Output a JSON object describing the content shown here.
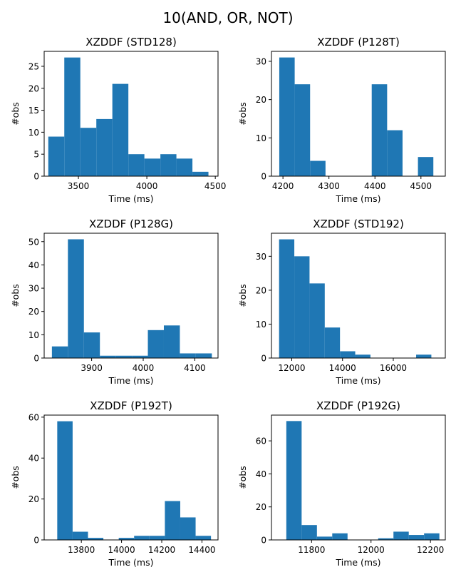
{
  "figure": {
    "title": "10(AND, OR, NOT)"
  },
  "colors": {
    "bar": "#1f77b4",
    "axis": "#000000"
  },
  "chart_data": [
    {
      "type": "bar",
      "title": "XZDDF (STD128)",
      "xlabel": "Time (ms)",
      "ylabel": "#obs",
      "xlim": [
        3250,
        4520
      ],
      "ylim": [
        0,
        28.4
      ],
      "xticks": [
        3500,
        4000,
        4500
      ],
      "yticks": [
        0,
        5,
        10,
        15,
        20,
        25
      ],
      "bin_edges": [
        3280,
        3397,
        3514,
        3631,
        3748,
        3865,
        3982,
        4099,
        4216,
        4333,
        4450
      ],
      "values": [
        9,
        27,
        11,
        13,
        21,
        5,
        4,
        5,
        4,
        1
      ]
    },
    {
      "type": "bar",
      "title": "XZDDF (P128T)",
      "xlabel": "Time (ms)",
      "ylabel": "#obs",
      "xlim": [
        4175,
        4553
      ],
      "ylim": [
        0,
        32.6
      ],
      "xticks": [
        4200,
        4300,
        4400,
        4500
      ],
      "yticks": [
        0,
        10,
        20,
        30
      ],
      "bin_edges": [
        4192,
        4225.5,
        4259,
        4292.5,
        4326,
        4359.5,
        4393,
        4426.5,
        4460,
        4493.5,
        4527
      ],
      "values": [
        31,
        24,
        4,
        0,
        0,
        0,
        24,
        12,
        0,
        5
      ]
    },
    {
      "type": "bar",
      "title": "XZDDF (P128G)",
      "xlabel": "Time (ms)",
      "ylabel": "#obs",
      "xlim": [
        3808,
        4145
      ],
      "ylim": [
        0,
        53.6
      ],
      "xticks": [
        3900,
        4000,
        4100
      ],
      "yticks": [
        0,
        10,
        20,
        30,
        40,
        50
      ],
      "bin_edges": [
        3823,
        3854,
        3885,
        3916,
        3947,
        3978,
        4009,
        4040,
        4071,
        4102,
        4133
      ],
      "values": [
        5,
        51,
        11,
        1,
        1,
        1,
        12,
        14,
        2,
        2
      ]
    },
    {
      "type": "bar",
      "title": "XZDDF (STD192)",
      "xlabel": "Time (ms)",
      "ylabel": "#obs",
      "xlim": [
        11200,
        18050
      ],
      "ylim": [
        0,
        36.8
      ],
      "xticks": [
        12000,
        14000,
        16000
      ],
      "yticks": [
        0,
        10,
        20,
        30
      ],
      "bin_edges": [
        11500,
        12100,
        12700,
        13300,
        13900,
        14500,
        15100,
        15700,
        16300,
        16900,
        17500
      ],
      "values": [
        35,
        30,
        22,
        9,
        2,
        1,
        0,
        0,
        0,
        1
      ]
    },
    {
      "type": "bar",
      "title": "XZDDF (P192T)",
      "xlabel": "Time (ms)",
      "ylabel": "#obs",
      "xlim": [
        13615,
        14480
      ],
      "ylim": [
        0,
        61
      ],
      "xticks": [
        13800,
        14000,
        14200,
        14400
      ],
      "yticks": [
        0,
        20,
        40,
        60
      ],
      "bin_edges": [
        13680,
        13756.5,
        13833,
        13909.5,
        13986,
        14062.5,
        14139,
        14215.5,
        14292,
        14368.5,
        14445
      ],
      "values": [
        58,
        4,
        1,
        0,
        1,
        2,
        2,
        19,
        11,
        2
      ]
    },
    {
      "type": "bar",
      "title": "XZDDF (P192G)",
      "xlabel": "Time (ms)",
      "ylabel": "#obs",
      "xlim": [
        11665,
        12250
      ],
      "ylim": [
        0,
        75.6
      ],
      "xticks": [
        11800,
        12000,
        12200
      ],
      "yticks": [
        0,
        20,
        40,
        60
      ],
      "bin_edges": [
        11715,
        11766.5,
        11818,
        11869.5,
        11921,
        11972.5,
        12024,
        12075.5,
        12127,
        12178.5,
        12230
      ],
      "values": [
        72,
        9,
        2,
        4,
        0,
        0,
        1,
        5,
        3,
        4
      ]
    }
  ]
}
